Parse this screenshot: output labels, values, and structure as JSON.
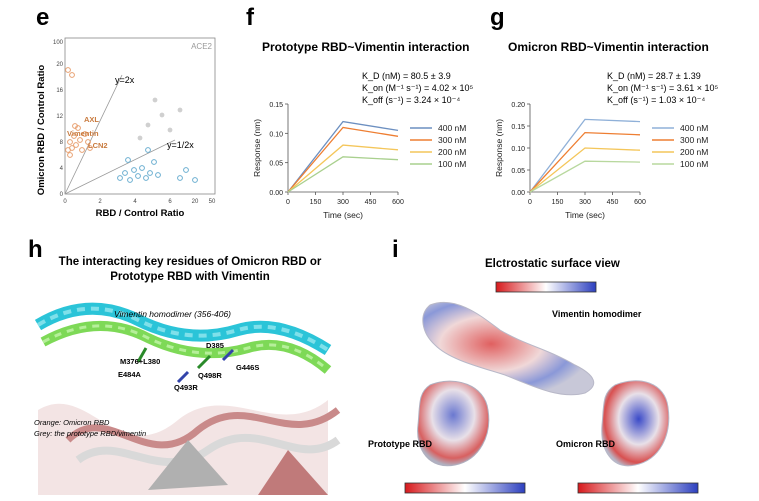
{
  "panels": {
    "e": {
      "label": "e",
      "ylabel": "Omicron RBD / Control Ratio",
      "xlabel": "RBD / Control Ratio",
      "corner_label": "ACE2",
      "annotations": [
        "AXL",
        "Vimentin",
        "LCN2",
        "y=2x",
        "y=1/2x"
      ],
      "x_ticks": [
        "0",
        "2",
        "4",
        "6",
        "20",
        "50"
      ],
      "y_ticks": [
        "0",
        "4",
        "8",
        "12",
        "16",
        "20",
        "100"
      ],
      "colors": {
        "orange": "#e8a070",
        "blue": "#6aaed0",
        "grey": "#c8c8c8"
      }
    },
    "f": {
      "label": "f",
      "title": "Prototype RBD~Vimentin interaction",
      "kd": "K_D (nM) = 80.5 ± 3.9",
      "kon": "K_on (M⁻¹ s⁻¹) = 4.02 × 10⁵",
      "koff": "K_off (s⁻¹) = 3.24 × 10⁻⁴"
    },
    "g": {
      "label": "g",
      "title": "Omicron RBD~Vimentin interaction",
      "kd": "K_D (nM) = 28.7 ± 1.39",
      "kon": "K_on (M⁻¹ s⁻¹) = 3.61 × 10⁵",
      "koff": "K_off (s⁻¹) = 1.03 × 10⁻⁴"
    },
    "h": {
      "label": "h",
      "title": "The interacting key residues of Omicron RBD or Prototype RBD with Vimentin",
      "helix_label": "Vimentin homodimer (356-406)",
      "residues": [
        "D385",
        "M376+L380",
        "E484A",
        "Q498R",
        "G446S",
        "Q493R"
      ],
      "legend_orange": "Orange: Omicron RBD",
      "legend_grey": "Grey: the prototype RBD/vimentin"
    },
    "i": {
      "label": "i",
      "title": "Elctrostatic surface view",
      "labels": [
        "Vimentin homodimer",
        "Prototype RBD",
        "Omicron RBD"
      ]
    }
  },
  "chart_data": [
    {
      "type": "line",
      "panel": "f",
      "title": "",
      "xlabel": "Time (sec)",
      "ylabel": "Response (nm)",
      "xlim": [
        0,
        600
      ],
      "ylim": [
        0,
        0.15
      ],
      "x_ticks": [
        0,
        150,
        300,
        450,
        600
      ],
      "y_ticks": [
        0.0,
        0.05,
        0.1,
        0.15
      ],
      "y_tick_labels": [
        "0.00",
        "0.05",
        "0.10",
        "0.15"
      ],
      "series": [
        {
          "name": "400 nM",
          "color": "#6c8fc0",
          "x": [
            0,
            300,
            600
          ],
          "y": [
            0,
            0.12,
            0.105
          ]
        },
        {
          "name": "300 nM",
          "color": "#ee7e32",
          "x": [
            0,
            300,
            600
          ],
          "y": [
            0,
            0.11,
            0.095
          ]
        },
        {
          "name": "200 nM",
          "color": "#f4c65a",
          "x": [
            0,
            300,
            600
          ],
          "y": [
            0,
            0.08,
            0.072
          ]
        },
        {
          "name": "100 nM",
          "color": "#a9d08e",
          "x": [
            0,
            300,
            600
          ],
          "y": [
            0,
            0.06,
            0.055
          ]
        }
      ]
    },
    {
      "type": "line",
      "panel": "g",
      "title": "",
      "xlabel": "Time (sec)",
      "ylabel": "Response (nm)",
      "xlim": [
        0,
        600
      ],
      "ylim": [
        0,
        0.2
      ],
      "x_ticks": [
        0,
        150,
        300,
        450,
        600
      ],
      "y_ticks": [
        0.0,
        0.05,
        0.1,
        0.15,
        0.2
      ],
      "y_tick_labels": [
        "0.00",
        "0.05",
        "0.10",
        "0.15",
        "0.20"
      ],
      "series": [
        {
          "name": "400 nM",
          "color": "#8fb0d8",
          "x": [
            0,
            300,
            600
          ],
          "y": [
            0,
            0.165,
            0.16
          ]
        },
        {
          "name": "300 nM",
          "color": "#ee7e32",
          "x": [
            0,
            300,
            600
          ],
          "y": [
            0,
            0.135,
            0.13
          ]
        },
        {
          "name": "200 nM",
          "color": "#f4c65a",
          "x": [
            0,
            300,
            600
          ],
          "y": [
            0,
            0.1,
            0.095
          ]
        },
        {
          "name": "100 nM",
          "color": "#b8d89e",
          "x": [
            0,
            300,
            600
          ],
          "y": [
            0,
            0.07,
            0.068
          ]
        }
      ]
    }
  ]
}
